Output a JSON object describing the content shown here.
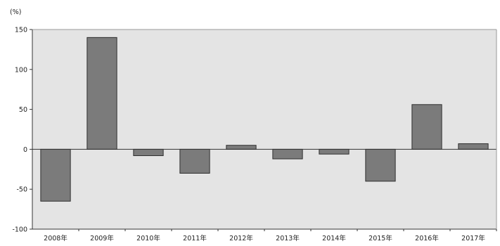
{
  "chart_data": {
    "type": "bar",
    "title": "",
    "unit_label": "(%)",
    "xlabel": "",
    "ylabel": "",
    "categories": [
      "2008年",
      "2009年",
      "2010年",
      "2011年",
      "2012年",
      "2013年",
      "2014年",
      "2015年",
      "2016年",
      "2017年"
    ],
    "values": [
      -65,
      140,
      -8,
      -30,
      5,
      -12,
      -6,
      -40,
      56,
      7
    ],
    "ylim": [
      -100,
      150
    ],
    "yticks": [
      -100,
      -50,
      0,
      50,
      100,
      150
    ],
    "grid": false,
    "legend": "none",
    "colors": {
      "plot_background": "#e4e4e4",
      "bar_fill": "#7b7b7b",
      "bar_stroke": "#2e2e2e",
      "axis": "#333333"
    }
  }
}
